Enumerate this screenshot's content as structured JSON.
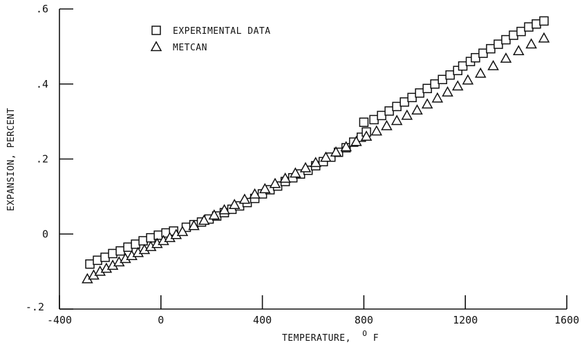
{
  "chart_data": {
    "type": "scatter",
    "xlabel": "TEMPERATURE,",
    "xlabel_unit_sup": "O",
    "xlabel_unit": "F",
    "ylabel": "EXPANSION, PERCENT",
    "xlim": [
      -400,
      1600
    ],
    "ylim": [
      -0.2,
      0.6
    ],
    "xticks": [
      -400,
      0,
      400,
      800,
      1200,
      1600
    ],
    "xtick_labels": [
      "-400",
      "0",
      "400",
      "800",
      "1200",
      "1600"
    ],
    "yticks": [
      -0.2,
      0,
      0.2,
      0.4,
      0.6
    ],
    "ytick_labels": [
      "-.2",
      "0",
      ".2",
      ".4",
      ".6"
    ],
    "grid": false,
    "legend_position": "top-left",
    "series": [
      {
        "name": "EXPERIMENTAL DATA",
        "marker": "square",
        "points": [
          [
            -280,
            -0.08
          ],
          [
            -250,
            -0.07
          ],
          [
            -220,
            -0.062
          ],
          [
            -190,
            -0.052
          ],
          [
            -160,
            -0.045
          ],
          [
            -130,
            -0.035
          ],
          [
            -100,
            -0.027
          ],
          [
            -70,
            -0.018
          ],
          [
            -40,
            -0.01
          ],
          [
            -10,
            -0.003
          ],
          [
            20,
            0.003
          ],
          [
            50,
            0.008
          ],
          [
            100,
            0.018
          ],
          [
            130,
            0.025
          ],
          [
            160,
            0.032
          ],
          [
            190,
            0.04
          ],
          [
            220,
            0.048
          ],
          [
            250,
            0.057
          ],
          [
            280,
            0.066
          ],
          [
            310,
            0.075
          ],
          [
            340,
            0.084
          ],
          [
            370,
            0.095
          ],
          [
            400,
            0.107
          ],
          [
            430,
            0.118
          ],
          [
            460,
            0.128
          ],
          [
            490,
            0.14
          ],
          [
            520,
            0.15
          ],
          [
            550,
            0.16
          ],
          [
            580,
            0.17
          ],
          [
            610,
            0.182
          ],
          [
            640,
            0.193
          ],
          [
            670,
            0.205
          ],
          [
            700,
            0.218
          ],
          [
            730,
            0.23
          ],
          [
            760,
            0.245
          ],
          [
            790,
            0.258
          ],
          [
            810,
            0.272
          ],
          [
            800,
            0.298
          ],
          [
            840,
            0.305
          ],
          [
            870,
            0.316
          ],
          [
            900,
            0.328
          ],
          [
            930,
            0.34
          ],
          [
            960,
            0.352
          ],
          [
            990,
            0.364
          ],
          [
            1020,
            0.376
          ],
          [
            1050,
            0.388
          ],
          [
            1080,
            0.4
          ],
          [
            1110,
            0.412
          ],
          [
            1140,
            0.424
          ],
          [
            1170,
            0.436
          ],
          [
            1190,
            0.448
          ],
          [
            1220,
            0.46
          ],
          [
            1240,
            0.47
          ],
          [
            1270,
            0.482
          ],
          [
            1300,
            0.494
          ],
          [
            1330,
            0.506
          ],
          [
            1360,
            0.518
          ],
          [
            1390,
            0.53
          ],
          [
            1420,
            0.54
          ],
          [
            1450,
            0.552
          ],
          [
            1480,
            0.56
          ],
          [
            1510,
            0.568
          ]
        ]
      },
      {
        "name": "METCAN",
        "marker": "triangle",
        "points": [
          [
            -290,
            -0.12
          ],
          [
            -265,
            -0.11
          ],
          [
            -240,
            -0.1
          ],
          [
            -215,
            -0.092
          ],
          [
            -190,
            -0.084
          ],
          [
            -165,
            -0.075
          ],
          [
            -140,
            -0.066
          ],
          [
            -115,
            -0.058
          ],
          [
            -90,
            -0.05
          ],
          [
            -65,
            -0.042
          ],
          [
            -40,
            -0.034
          ],
          [
            -15,
            -0.026
          ],
          [
            10,
            -0.018
          ],
          [
            35,
            -0.01
          ],
          [
            60,
            -0.002
          ],
          [
            85,
            0.006
          ],
          [
            130,
            0.022
          ],
          [
            170,
            0.036
          ],
          [
            210,
            0.05
          ],
          [
            250,
            0.064
          ],
          [
            290,
            0.078
          ],
          [
            330,
            0.092
          ],
          [
            370,
            0.106
          ],
          [
            410,
            0.12
          ],
          [
            450,
            0.134
          ],
          [
            490,
            0.148
          ],
          [
            530,
            0.162
          ],
          [
            570,
            0.176
          ],
          [
            610,
            0.19
          ],
          [
            650,
            0.204
          ],
          [
            690,
            0.218
          ],
          [
            730,
            0.232
          ],
          [
            770,
            0.246
          ],
          [
            810,
            0.26
          ],
          [
            850,
            0.274
          ],
          [
            890,
            0.288
          ],
          [
            930,
            0.302
          ],
          [
            970,
            0.316
          ],
          [
            1010,
            0.33
          ],
          [
            1050,
            0.346
          ],
          [
            1090,
            0.362
          ],
          [
            1130,
            0.378
          ],
          [
            1170,
            0.394
          ],
          [
            1210,
            0.41
          ],
          [
            1260,
            0.428
          ],
          [
            1310,
            0.448
          ],
          [
            1360,
            0.468
          ],
          [
            1410,
            0.488
          ],
          [
            1460,
            0.506
          ],
          [
            1510,
            0.522
          ]
        ]
      }
    ]
  }
}
